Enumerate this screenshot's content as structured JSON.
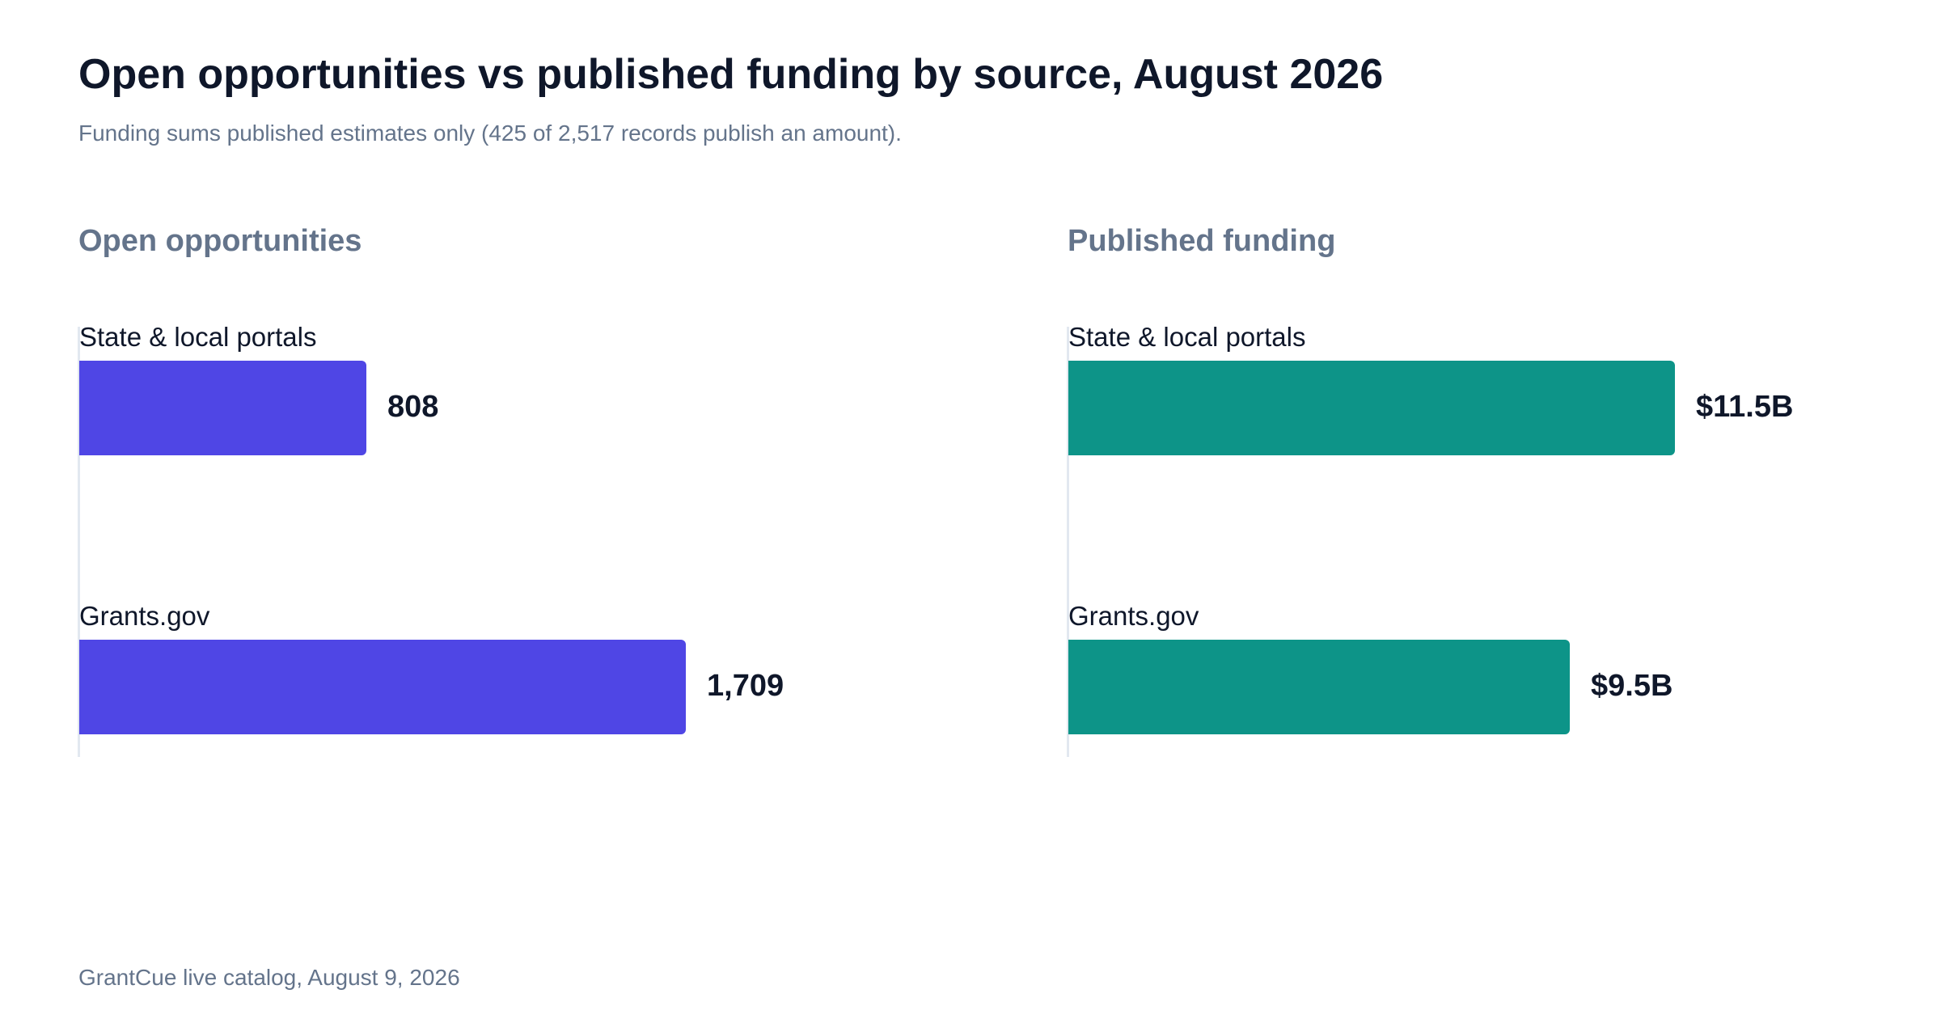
{
  "header": {
    "title": "Open opportunities vs published funding by source, August 2026",
    "subtitle": "Funding sums published estimates only (425 of 2,517 records publish an amount)."
  },
  "footer": {
    "source": "GrantCue live catalog, August 9, 2026"
  },
  "chart_data": [
    {
      "type": "bar",
      "orientation": "horizontal",
      "title": "Open opportunities",
      "categories": [
        "State & local portals",
        "Grants.gov"
      ],
      "values": [
        808,
        1709
      ],
      "value_labels": [
        "808",
        "1,709"
      ],
      "color": "#4f46e5",
      "grid": false
    },
    {
      "type": "bar",
      "orientation": "horizontal",
      "title": "Published funding",
      "categories": [
        "State & local portals",
        "Grants.gov"
      ],
      "values": [
        11.5,
        9.5
      ],
      "value_labels": [
        "$11.5B",
        "$9.5B"
      ],
      "unit": "$B",
      "color": "#0d9488",
      "grid": false
    }
  ]
}
